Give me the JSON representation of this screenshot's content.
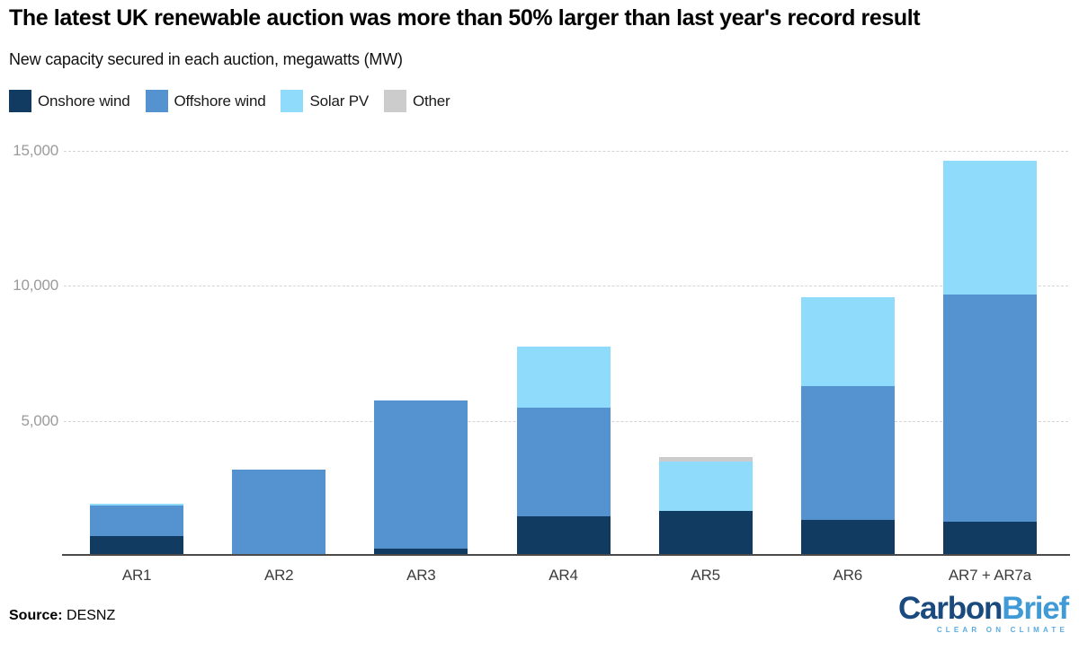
{
  "header": {
    "title": "The latest UK renewable auction was more than 50% larger than last year's record result",
    "subtitle": "New capacity secured in each auction, megawatts (MW)"
  },
  "legend": {
    "items": [
      {
        "label": "Onshore wind",
        "color": "#123b61"
      },
      {
        "label": "Offshore wind",
        "color": "#5593d0"
      },
      {
        "label": "Solar PV",
        "color": "#8edbfc"
      },
      {
        "label": "Other",
        "color": "#cccccc"
      }
    ]
  },
  "chart_data": {
    "type": "bar",
    "stacked": true,
    "title": "The latest UK renewable auction was more than 50% larger than last year's record result",
    "subtitle": "New capacity secured in each auction, megawatts (MW)",
    "xlabel": "",
    "ylabel": "New capacity secured, megawatts (MW)",
    "units": "MW",
    "categories": [
      "AR1",
      "AR2",
      "AR3",
      "AR4",
      "AR5",
      "AR6",
      "AR7 + AR7a"
    ],
    "series": [
      {
        "name": "Onshore wind",
        "color": "#123b61",
        "values": [
          730,
          0,
          280,
          1460,
          1680,
          1320,
          1260
        ]
      },
      {
        "name": "Offshore wind",
        "color": "#5593d0",
        "values": [
          1130,
          3180,
          5480,
          4040,
          0,
          4970,
          8410
        ]
      },
      {
        "name": "Solar PV",
        "color": "#8edbfc",
        "values": [
          70,
          0,
          0,
          2250,
          1810,
          3290,
          4970
        ]
      },
      {
        "name": "Other",
        "color": "#cccccc",
        "values": [
          0,
          0,
          0,
          0,
          160,
          0,
          0
        ]
      }
    ],
    "totals": [
      1930,
      3180,
      5760,
      7750,
      3650,
      9580,
      14640
    ],
    "ylim": [
      0,
      15000
    ],
    "yticks": [
      {
        "value": 5000,
        "label": "5,000"
      },
      {
        "value": 10000,
        "label": "10,000"
      },
      {
        "value": 15000,
        "label": "15,000"
      }
    ],
    "grid": "horizontal-dashed",
    "legend_position": "top-left"
  },
  "footer": {
    "source_label": "Source:",
    "source_value": "DESNZ"
  },
  "logo": {
    "part1": "Carbon",
    "part2": "Brief",
    "tagline": "CLEAR ON CLIMATE",
    "part1_color": "#1b4a7e",
    "part2_color": "#3f9ad6",
    "tagline_color": "#5aabdf"
  }
}
